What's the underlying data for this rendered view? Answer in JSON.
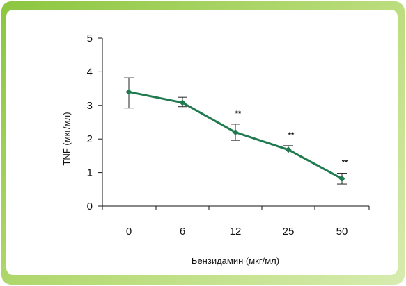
{
  "chart_data": {
    "type": "line",
    "categories": [
      "0",
      "6",
      "12",
      "25",
      "50"
    ],
    "series": [
      {
        "values": [
          3.4,
          3.08,
          2.2,
          1.68,
          0.82
        ],
        "error_low": [
          2.92,
          2.96,
          1.96,
          1.58,
          0.66
        ],
        "error_high": [
          3.82,
          3.24,
          2.44,
          1.8,
          0.98
        ]
      }
    ],
    "annotations": [
      "",
      "",
      "**",
      "**",
      "**"
    ],
    "xlabel": "Бензидамин (мкг/мл)",
    "ylabel": "TNF (мкг/мл)",
    "ylim": [
      0,
      5
    ],
    "yticks": [
      "0",
      "1",
      "2",
      "3",
      "4",
      "5"
    ],
    "grid": false,
    "colors": {
      "line": "#1f7a4f",
      "frame": "#8cc63f"
    }
  }
}
